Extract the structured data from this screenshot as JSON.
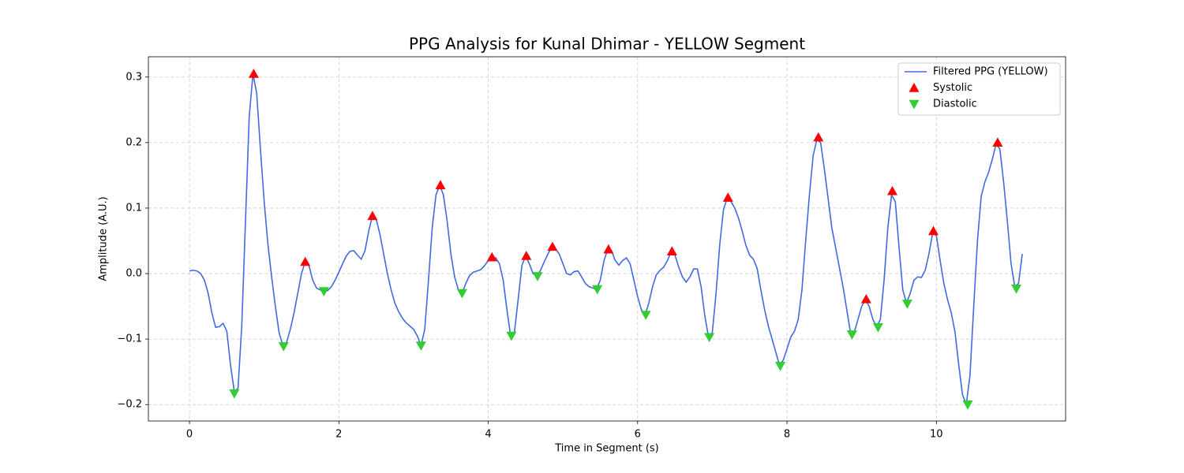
{
  "chart_data": {
    "type": "line",
    "title": "PPG Analysis for Kunal Dhimar - YELLOW Segment",
    "x_label": "Time in Segment (s)",
    "y_label": "Amplitude (A.U.)",
    "xlim": [
      -0.55,
      11.73
    ],
    "ylim": [
      -0.225,
      0.331
    ],
    "xticks": [
      0,
      2,
      4,
      6,
      8,
      10
    ],
    "yticks": [
      {
        "value": -0.2,
        "label": "−0.2"
      },
      {
        "value": -0.1,
        "label": "−0.1"
      },
      {
        "value": 0,
        "label": "0.0"
      },
      0.1,
      0.2,
      0.3
    ],
    "grid": true,
    "legend_loc": "upper right",
    "series": [
      {
        "name": "Filtered PPG (YELLOW)",
        "type": "line",
        "color": "#4169e1",
        "x": [
          0,
          0.05,
          0.1,
          0.15,
          0.2,
          0.25,
          0.3,
          0.35,
          0.4,
          0.45,
          0.5,
          0.55,
          0.6,
          0.65,
          0.7,
          0.75,
          0.8,
          0.85,
          0.9,
          0.95,
          1.0,
          1.05,
          1.1,
          1.15,
          1.2,
          1.25,
          1.3,
          1.35,
          1.4,
          1.45,
          1.5,
          1.55,
          1.6,
          1.65,
          1.7,
          1.75,
          1.8,
          1.85,
          1.9,
          1.95,
          2.0,
          2.05,
          2.1,
          2.15,
          2.2,
          2.25,
          2.3,
          2.35,
          2.4,
          2.45,
          2.5,
          2.55,
          2.6,
          2.65,
          2.7,
          2.75,
          2.8,
          2.85,
          2.9,
          2.95,
          3.0,
          3.05,
          3.1,
          3.15,
          3.2,
          3.25,
          3.3,
          3.35,
          3.4,
          3.45,
          3.5,
          3.55,
          3.6,
          3.65,
          3.7,
          3.75,
          3.8,
          3.85,
          3.9,
          3.95,
          4.0,
          4.05,
          4.1,
          4.15,
          4.2,
          4.25,
          4.3,
          4.35,
          4.4,
          4.45,
          4.5,
          4.55,
          4.6,
          4.65,
          4.7,
          4.75,
          4.8,
          4.85,
          4.9,
          4.95,
          5.0,
          5.05,
          5.1,
          5.15,
          5.2,
          5.25,
          5.3,
          5.35,
          5.4,
          5.45,
          5.5,
          5.55,
          5.6,
          5.65,
          5.7,
          5.75,
          5.8,
          5.85,
          5.9,
          5.95,
          6.0,
          6.05,
          6.1,
          6.15,
          6.2,
          6.25,
          6.3,
          6.35,
          6.4,
          6.45,
          6.5,
          6.55,
          6.6,
          6.65,
          6.7,
          6.75,
          6.8,
          6.85,
          6.9,
          6.95,
          7.0,
          7.05,
          7.1,
          7.15,
          7.2,
          7.25,
          7.3,
          7.35,
          7.4,
          7.45,
          7.5,
          7.55,
          7.6,
          7.65,
          7.7,
          7.75,
          7.8,
          7.85,
          7.9,
          7.95,
          8.0,
          8.05,
          8.1,
          8.15,
          8.2,
          8.25,
          8.3,
          8.35,
          8.4,
          8.45,
          8.5,
          8.55,
          8.6,
          8.65,
          8.7,
          8.75,
          8.8,
          8.85,
          8.9,
          8.95,
          9.0,
          9.05,
          9.1,
          9.15,
          9.2,
          9.25,
          9.3,
          9.35,
          9.4,
          9.45,
          9.5,
          9.55,
          9.6,
          9.65,
          9.7,
          9.75,
          9.8,
          9.85,
          9.9,
          9.95,
          10.0,
          10.05,
          10.1,
          10.15,
          10.2,
          10.25,
          10.3,
          10.35,
          10.4,
          10.45,
          10.5,
          10.55,
          10.6,
          10.65,
          10.7,
          10.75,
          10.8,
          10.85,
          10.9,
          10.95,
          11.0,
          11.05,
          11.1,
          11.15
        ],
        "values": [
          0.004,
          0.005,
          0.004,
          0.0,
          -0.01,
          -0.03,
          -0.06,
          -0.082,
          -0.081,
          -0.076,
          -0.088,
          -0.14,
          -0.18,
          -0.175,
          -0.08,
          0.08,
          0.24,
          0.305,
          0.275,
          0.19,
          0.11,
          0.045,
          -0.005,
          -0.05,
          -0.09,
          -0.11,
          -0.105,
          -0.085,
          -0.06,
          -0.03,
          0.0,
          0.018,
          0.012,
          -0.01,
          -0.022,
          -0.025,
          -0.027,
          -0.026,
          -0.02,
          -0.01,
          0.002,
          0.015,
          0.027,
          0.034,
          0.035,
          0.028,
          0.022,
          0.035,
          0.065,
          0.088,
          0.083,
          0.06,
          0.03,
          0.0,
          -0.025,
          -0.045,
          -0.058,
          -0.068,
          -0.075,
          -0.08,
          -0.085,
          -0.095,
          -0.11,
          -0.085,
          -0.01,
          0.07,
          0.12,
          0.135,
          0.12,
          0.08,
          0.03,
          -0.005,
          -0.025,
          -0.03,
          -0.015,
          -0.003,
          0.002,
          0.004,
          0.006,
          0.012,
          0.02,
          0.025,
          0.024,
          0.015,
          -0.01,
          -0.055,
          -0.095,
          -0.09,
          -0.04,
          0.012,
          0.027,
          0.015,
          0.0,
          -0.004,
          0.005,
          0.018,
          0.03,
          0.041,
          0.038,
          0.03,
          0.015,
          0.0,
          -0.002,
          0.003,
          0.004,
          -0.005,
          -0.015,
          -0.02,
          -0.022,
          -0.024,
          -0.01,
          0.02,
          0.037,
          0.035,
          0.02,
          0.013,
          0.02,
          0.024,
          0.015,
          -0.01,
          -0.035,
          -0.055,
          -0.063,
          -0.045,
          -0.02,
          -0.002,
          0.005,
          0.01,
          0.02,
          0.034,
          0.028,
          0.01,
          -0.005,
          -0.013,
          -0.005,
          0.007,
          0.007,
          -0.02,
          -0.065,
          -0.097,
          -0.09,
          -0.03,
          0.045,
          0.098,
          0.115,
          0.11,
          0.1,
          0.085,
          0.065,
          0.043,
          0.028,
          0.022,
          0.008,
          -0.025,
          -0.055,
          -0.08,
          -0.1,
          -0.12,
          -0.14,
          -0.132,
          -0.115,
          -0.097,
          -0.088,
          -0.07,
          -0.025,
          0.05,
          0.12,
          0.18,
          0.205,
          0.2,
          0.16,
          0.115,
          0.07,
          0.04,
          0.01,
          -0.02,
          -0.055,
          -0.09,
          -0.09,
          -0.07,
          -0.05,
          -0.04,
          -0.05,
          -0.07,
          -0.081,
          -0.07,
          -0.01,
          0.07,
          0.12,
          0.11,
          0.04,
          -0.025,
          -0.045,
          -0.03,
          -0.01,
          -0.005,
          -0.006,
          0.005,
          0.03,
          0.062,
          0.058,
          0.02,
          -0.015,
          -0.04,
          -0.06,
          -0.09,
          -0.14,
          -0.185,
          -0.2,
          -0.155,
          -0.05,
          0.05,
          0.118,
          0.14,
          0.155,
          0.175,
          0.198,
          0.19,
          0.14,
          0.08,
          0.015,
          -0.02,
          -0.015,
          0.03
        ]
      },
      {
        "name": "Systolic",
        "type": "scatter",
        "marker": "triangle-up",
        "color": "#ff0000",
        "x": [
          0.86,
          1.55,
          2.45,
          3.36,
          4.05,
          4.51,
          4.86,
          5.61,
          6.46,
          7.21,
          8.42,
          9.06,
          9.41,
          9.96,
          10.82
        ],
        "values": [
          0.305,
          0.018,
          0.088,
          0.135,
          0.025,
          0.027,
          0.041,
          0.037,
          0.034,
          0.116,
          0.208,
          -0.039,
          0.126,
          0.065,
          0.2
        ]
      },
      {
        "name": "Diastolic",
        "type": "scatter",
        "marker": "triangle-down",
        "color": "#32cd32",
        "x": [
          0.6,
          1.26,
          1.8,
          3.1,
          3.65,
          4.31,
          4.66,
          5.46,
          6.11,
          6.96,
          7.91,
          8.87,
          9.22,
          9.61,
          10.42,
          11.07
        ],
        "values": [
          -0.183,
          -0.111,
          -0.027,
          -0.11,
          -0.03,
          -0.095,
          -0.004,
          -0.024,
          -0.063,
          -0.097,
          -0.141,
          -0.093,
          -0.082,
          -0.046,
          -0.2,
          -0.023
        ]
      }
    ]
  }
}
